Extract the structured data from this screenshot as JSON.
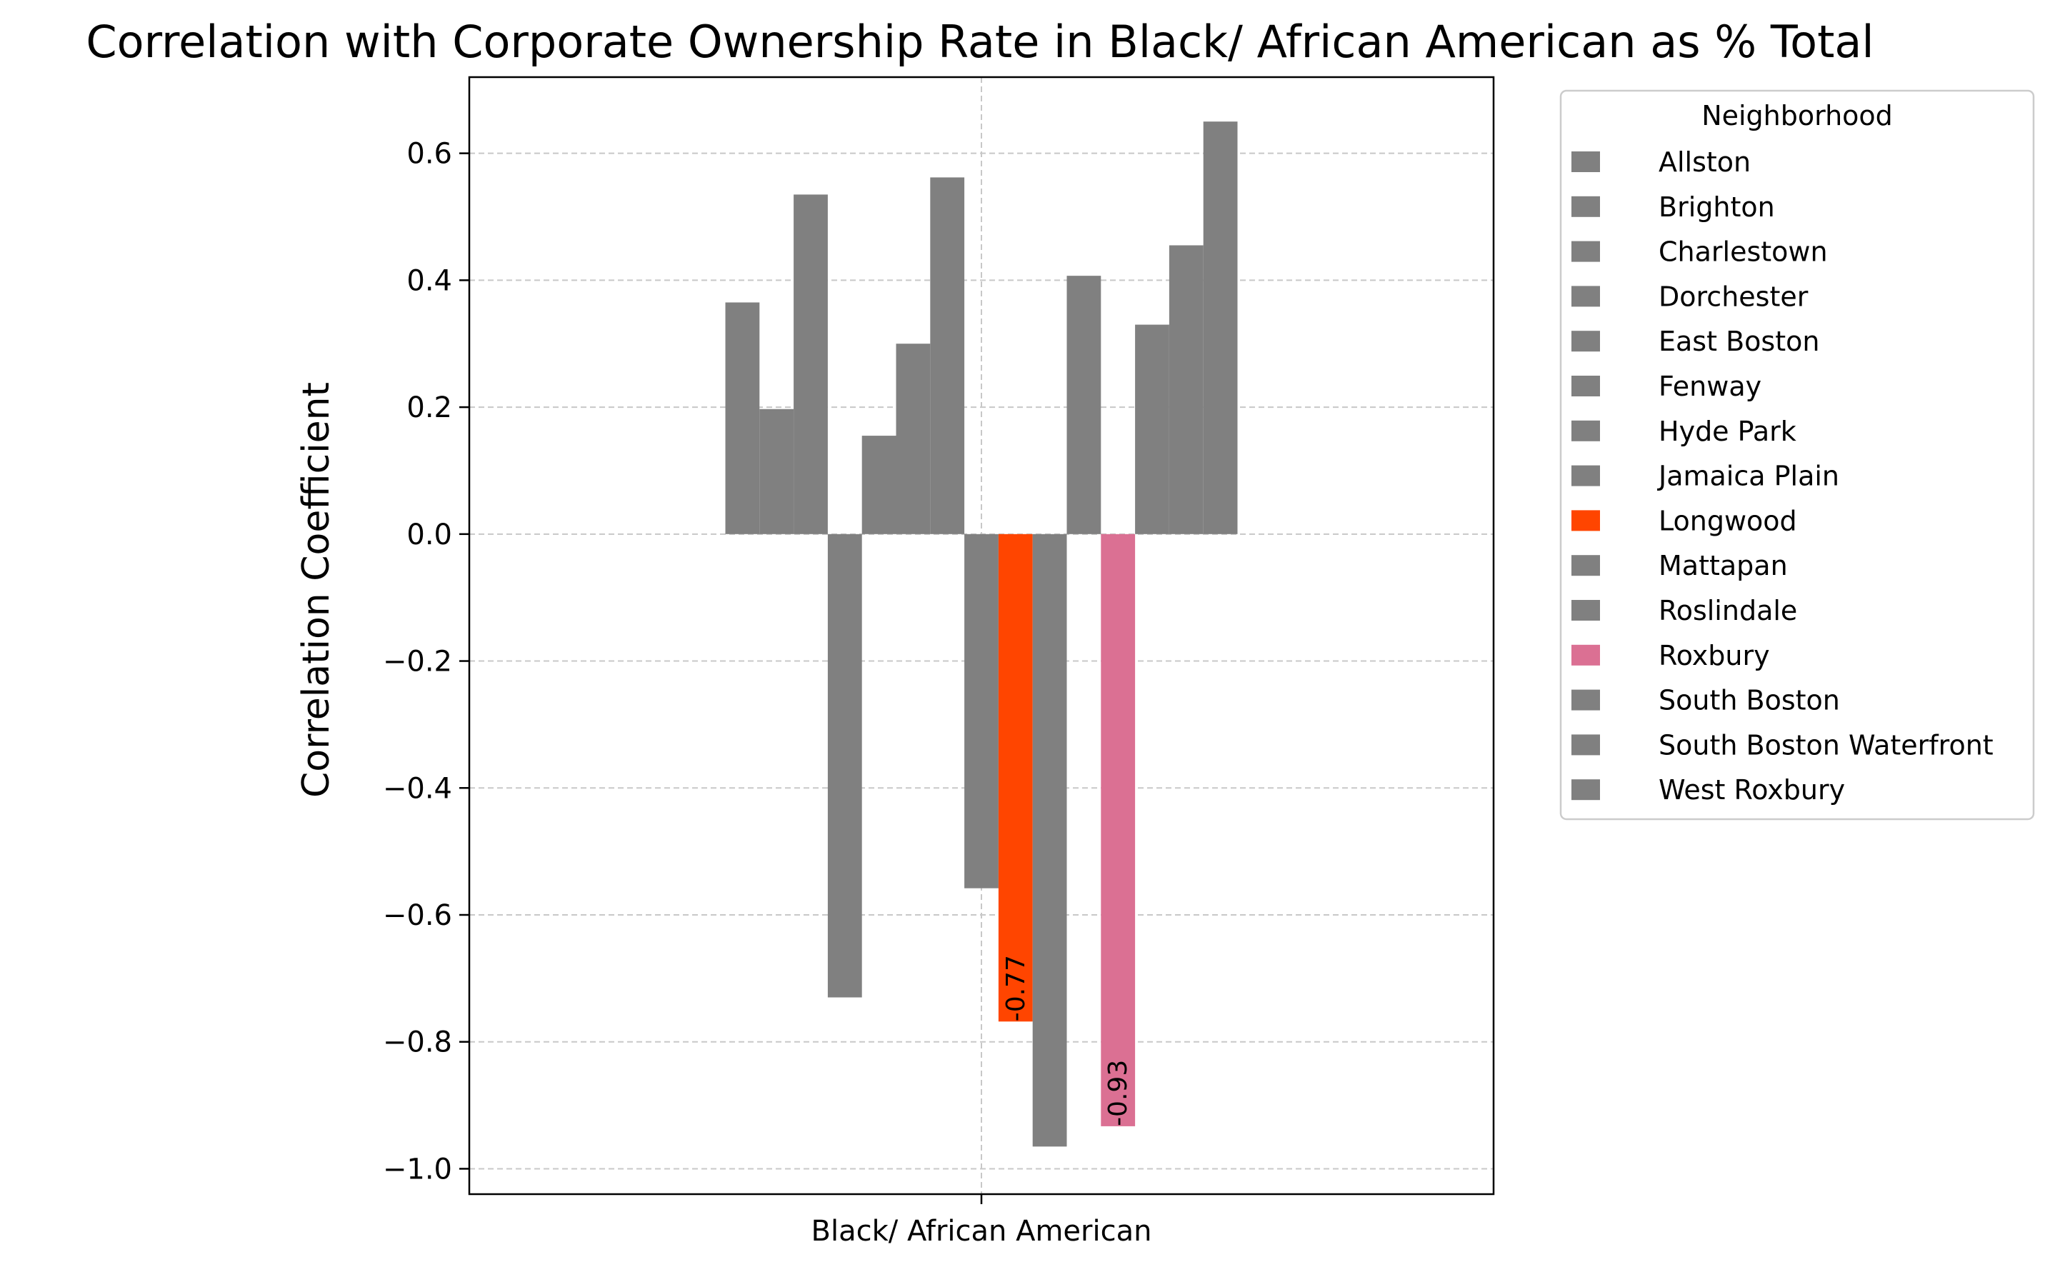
{
  "chart_data": {
    "type": "bar",
    "title": "Correlation with Corporate Ownership Rate in Black/ African American as % Total",
    "xlabel": "",
    "ylabel": "Correlation Coefficient",
    "categories": [
      "Black/ African American"
    ],
    "ylim": [
      -1.04,
      0.72
    ],
    "yticks": [
      -1.0,
      -0.8,
      -0.6,
      -0.4,
      -0.2,
      0.0,
      0.2,
      0.4,
      0.6
    ],
    "ytick_labels": [
      "−1.0",
      "−0.8",
      "−0.6",
      "−0.4",
      "−0.2",
      "0.0",
      "0.2",
      "0.4",
      "0.6"
    ],
    "grid": true,
    "legend": {
      "title": "Neighborhood",
      "placement": "outside-right-top"
    },
    "series": [
      {
        "name": "Allston",
        "values": [
          0.365
        ],
        "color": "#808080"
      },
      {
        "name": "Brighton",
        "values": [
          0.197
        ],
        "color": "#808080"
      },
      {
        "name": "Charlestown",
        "values": [
          0.535
        ],
        "color": "#808080"
      },
      {
        "name": "Dorchester",
        "values": [
          -0.73
        ],
        "color": "#808080"
      },
      {
        "name": "East Boston",
        "values": [
          0.155
        ],
        "color": "#808080"
      },
      {
        "name": "Fenway",
        "values": [
          0.3
        ],
        "color": "#808080"
      },
      {
        "name": "Hyde Park",
        "values": [
          0.562
        ],
        "color": "#808080"
      },
      {
        "name": "Jamaica Plain",
        "values": [
          -0.558
        ],
        "color": "#808080"
      },
      {
        "name": "Longwood",
        "values": [
          -0.768
        ],
        "color": "#ff4500",
        "label": "-0.77"
      },
      {
        "name": "Mattapan",
        "values": [
          -0.965
        ],
        "color": "#808080"
      },
      {
        "name": "Roslindale",
        "values": [
          0.407
        ],
        "color": "#808080"
      },
      {
        "name": "Roxbury",
        "values": [
          -0.933
        ],
        "color": "#db7093",
        "label": "-0.93"
      },
      {
        "name": "South Boston",
        "values": [
          0.33
        ],
        "color": "#808080"
      },
      {
        "name": "South Boston Waterfront",
        "values": [
          0.455
        ],
        "color": "#808080"
      },
      {
        "name": "West Roxbury",
        "values": [
          0.65
        ],
        "color": "#808080"
      }
    ]
  }
}
